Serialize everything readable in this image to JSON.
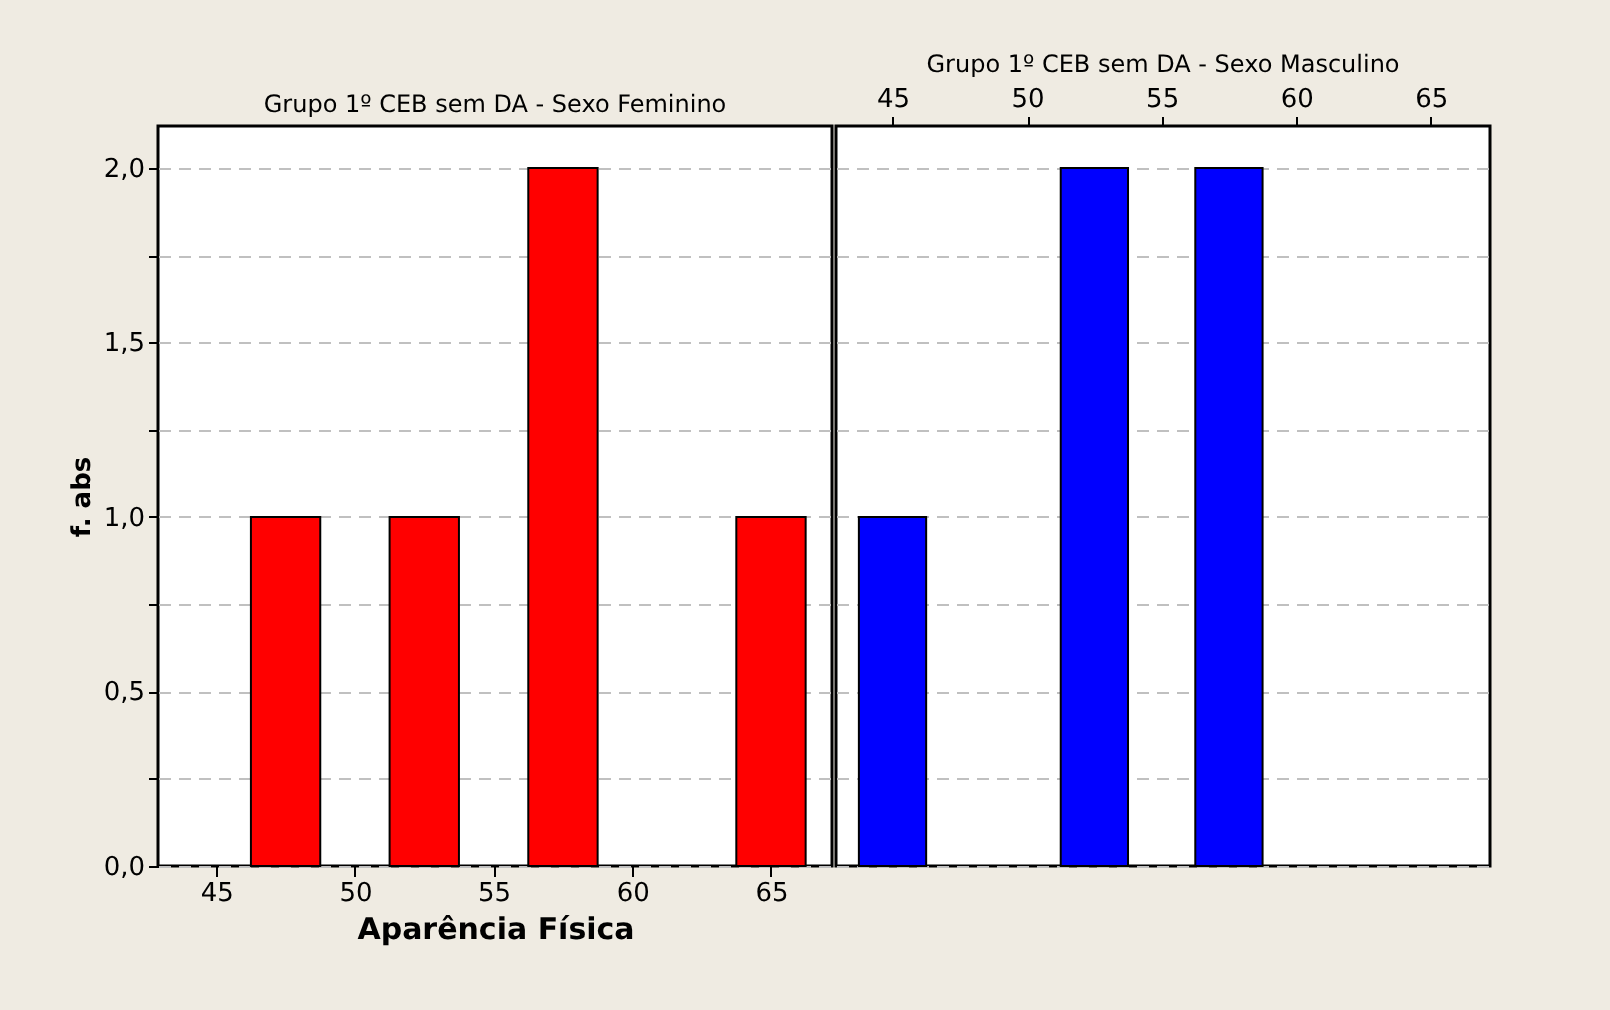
{
  "chart_data": [
    {
      "type": "histogram",
      "title": "Grupo 1º CEB sem DA - Sexo Feminino",
      "xlabel": "Aparência Física",
      "ylabel": "f. abs",
      "color": "#ff0000",
      "bins": [
        43.75,
        46.25,
        48.75,
        51.25,
        53.75,
        56.25,
        58.75,
        61.25,
        63.75,
        66.25
      ],
      "values": [
        0,
        1,
        0,
        1,
        0,
        2,
        0,
        0,
        1
      ],
      "xlim": [
        42.9,
        67.2
      ],
      "xticks": [
        45,
        50,
        55,
        60,
        65
      ],
      "ylim": [
        0,
        2.12
      ],
      "yticks": [
        {
          "value": 0,
          "label": "0,0"
        },
        {
          "value": 0.25,
          "label": null
        },
        {
          "value": 0.5,
          "label": "0,5"
        },
        {
          "value": 0.75,
          "label": null
        },
        {
          "value": 1,
          "label": "1,0"
        },
        {
          "value": 1.25,
          "label": null
        },
        {
          "value": 1.5,
          "label": "1,5"
        },
        {
          "value": 1.75,
          "label": null
        },
        {
          "value": 2,
          "label": "2,0"
        }
      ],
      "grid": "y"
    },
    {
      "type": "histogram",
      "title": "Grupo 1º CEB sem DA - Sexo Masculino",
      "color": "#0000ff",
      "bins": [
        43.75,
        46.25,
        48.75,
        51.25,
        53.75,
        56.25,
        58.75,
        61.25,
        63.75,
        66.25
      ],
      "values": [
        1,
        0,
        0,
        2,
        0,
        2,
        0,
        0,
        0
      ],
      "xlim": [
        42.9,
        67.2
      ],
      "xticks": [
        45,
        50,
        55,
        60,
        65
      ],
      "ylim": [
        0,
        2.12
      ],
      "yticks": [
        {
          "value": 0,
          "label": null
        },
        {
          "value": 0.25,
          "label": null
        },
        {
          "value": 0.5,
          "label": null
        },
        {
          "value": 0.75,
          "label": null
        },
        {
          "value": 1,
          "label": null
        },
        {
          "value": 1.25,
          "label": null
        },
        {
          "value": 1.5,
          "label": null
        },
        {
          "value": 1.75,
          "label": null
        },
        {
          "value": 2,
          "label": null
        }
      ],
      "grid": "y",
      "tick_labels": "x"
    }
  ]
}
